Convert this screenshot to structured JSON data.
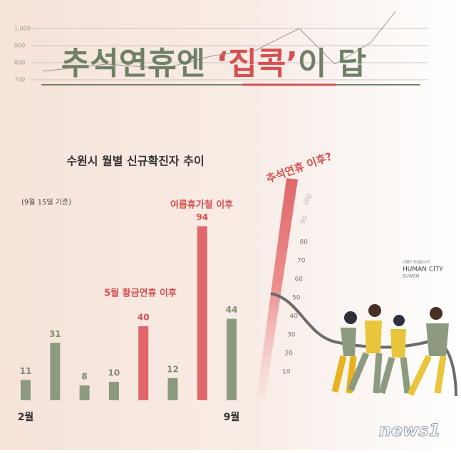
{
  "chart_data": {
    "type": "bar",
    "title_parts": [
      "추석연휴엔 ",
      "‘집콕’",
      "이 답"
    ],
    "subtitle": "수원시 월별 신규확진자 추이",
    "note": "(9월 15일 기준)",
    "categories": [
      "2월",
      null,
      null,
      null,
      null,
      null,
      null,
      "9월"
    ],
    "values": [
      11,
      31,
      8,
      10,
      40,
      12,
      94,
      44
    ],
    "colors": [
      "#8c9b80",
      "#8c9b80",
      "#8c9b80",
      "#8c9b80",
      "#e0676a",
      "#8c9b80",
      "#e0676a",
      "#8c9b80"
    ],
    "ylim": [
      0,
      100
    ],
    "annotations": [
      "5월 황금연휴 이후",
      "여름휴가철 이후",
      "추석연휴 이후?"
    ],
    "background_ticks": [
      {
        "value": 1000,
        "label": "1,000"
      },
      900,
      800,
      700
    ],
    "gauge_ticks": [
      10,
      20,
      30,
      40,
      50,
      60,
      70,
      80,
      90,
      100
    ],
    "logo": {
      "slogan": "사람이 반갑습니다",
      "name": "HUMAN CITY",
      "city": "SUWON"
    },
    "watermark": "news1"
  }
}
